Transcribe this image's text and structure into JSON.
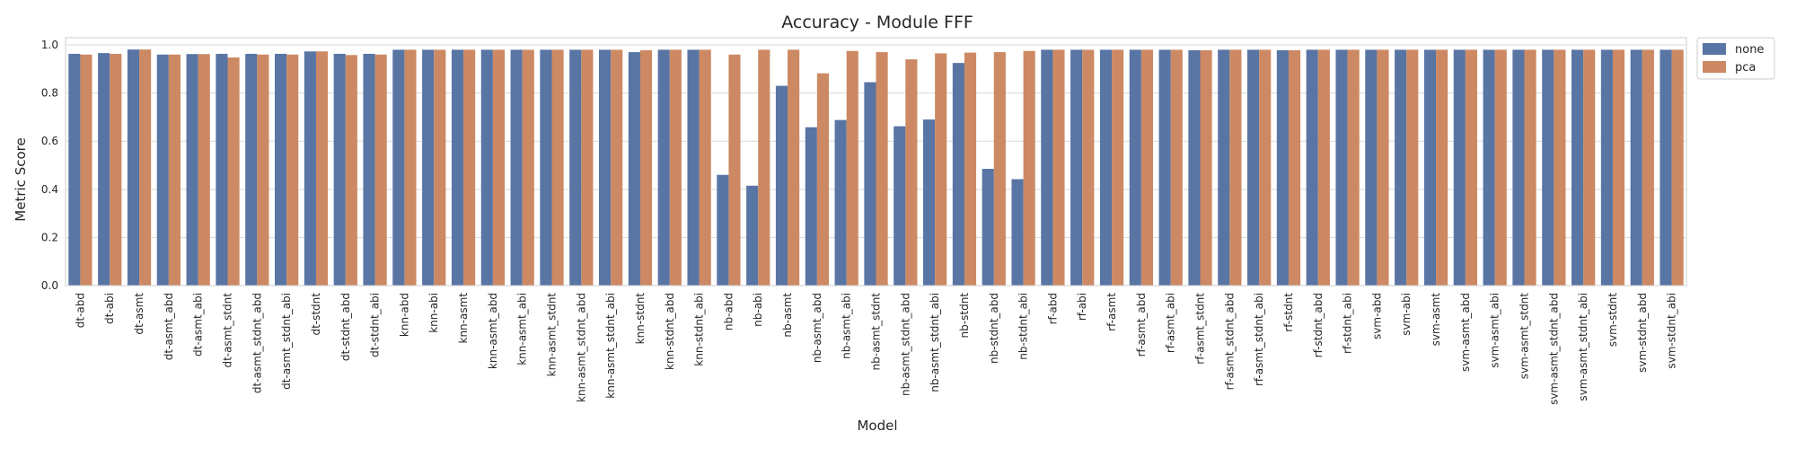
{
  "chart_data": {
    "type": "bar",
    "title": "Accuracy - Module FFF",
    "xlabel": "Model",
    "ylabel": "Metric Score",
    "ylim": [
      0,
      1.03
    ],
    "yticks": [
      "0.0",
      "0.2",
      "0.4",
      "0.6",
      "0.8",
      "1.0"
    ],
    "grid": true,
    "legend_position": "outside-top-right",
    "categories": [
      "dt-abd",
      "dt-abi",
      "dt-asmt",
      "dt-asmt_abd",
      "dt-asmt_abi",
      "dt-asmt_stdnt",
      "dt-asmt_stdnt_abd",
      "dt-asmt_stdnt_abi",
      "dt-stdnt",
      "dt-stdnt_abd",
      "dt-stdnt_abi",
      "knn-abd",
      "knn-abi",
      "knn-asmt",
      "knn-asmt_abd",
      "knn-asmt_abi",
      "knn-asmt_stdnt",
      "knn-asmt_stdnt_abd",
      "knn-asmt_stdnt_abi",
      "knn-stdnt",
      "knn-stdnt_abd",
      "knn-stdnt_abi",
      "nb-abd",
      "nb-abi",
      "nb-asmt",
      "nb-asmt_abd",
      "nb-asmt_abi",
      "nb-asmt_stdnt",
      "nb-asmt_stdnt_abd",
      "nb-asmt_stdnt_abi",
      "nb-stdnt",
      "nb-stdnt_abd",
      "nb-stdnt_abi",
      "rf-abd",
      "rf-abi",
      "rf-asmt",
      "rf-asmt_abd",
      "rf-asmt_abi",
      "rf-asmt_stdnt",
      "rf-asmt_stdnt_abd",
      "rf-asmt_stdnt_abi",
      "rf-stdnt",
      "rf-stdnt_abd",
      "rf-stdnt_abi",
      "svm-abd",
      "svm-abi",
      "svm-asmt",
      "svm-asmt_abd",
      "svm-asmt_abi",
      "svm-asmt_stdnt",
      "svm-asmt_stdnt_abd",
      "svm-asmt_stdnt_abi",
      "svm-stdnt",
      "svm-stdnt_abd",
      "svm-stdnt_abi"
    ],
    "series": [
      {
        "name": "none",
        "color": "#5875a4",
        "values": [
          0.963,
          0.966,
          0.981,
          0.96,
          0.962,
          0.963,
          0.963,
          0.963,
          0.973,
          0.963,
          0.963,
          0.98,
          0.98,
          0.98,
          0.98,
          0.98,
          0.98,
          0.98,
          0.98,
          0.97,
          0.98,
          0.98,
          0.46,
          0.415,
          0.83,
          0.658,
          0.688,
          0.845,
          0.662,
          0.69,
          0.925,
          0.485,
          0.442,
          0.98,
          0.98,
          0.98,
          0.98,
          0.98,
          0.978,
          0.98,
          0.98,
          0.978,
          0.98,
          0.98,
          0.98,
          0.98,
          0.98,
          0.98,
          0.98,
          0.98,
          0.98,
          0.98,
          0.98,
          0.98,
          0.98
        ]
      },
      {
        "name": "pca",
        "color": "#cc8963",
        "values": [
          0.96,
          0.963,
          0.981,
          0.96,
          0.962,
          0.948,
          0.96,
          0.96,
          0.973,
          0.958,
          0.96,
          0.98,
          0.98,
          0.98,
          0.98,
          0.98,
          0.98,
          0.98,
          0.98,
          0.978,
          0.98,
          0.98,
          0.96,
          0.98,
          0.98,
          0.882,
          0.975,
          0.97,
          0.94,
          0.965,
          0.968,
          0.97,
          0.975,
          0.98,
          0.98,
          0.98,
          0.98,
          0.98,
          0.978,
          0.98,
          0.98,
          0.978,
          0.98,
          0.98,
          0.98,
          0.98,
          0.98,
          0.98,
          0.98,
          0.98,
          0.98,
          0.98,
          0.98,
          0.98,
          0.98
        ]
      }
    ]
  }
}
